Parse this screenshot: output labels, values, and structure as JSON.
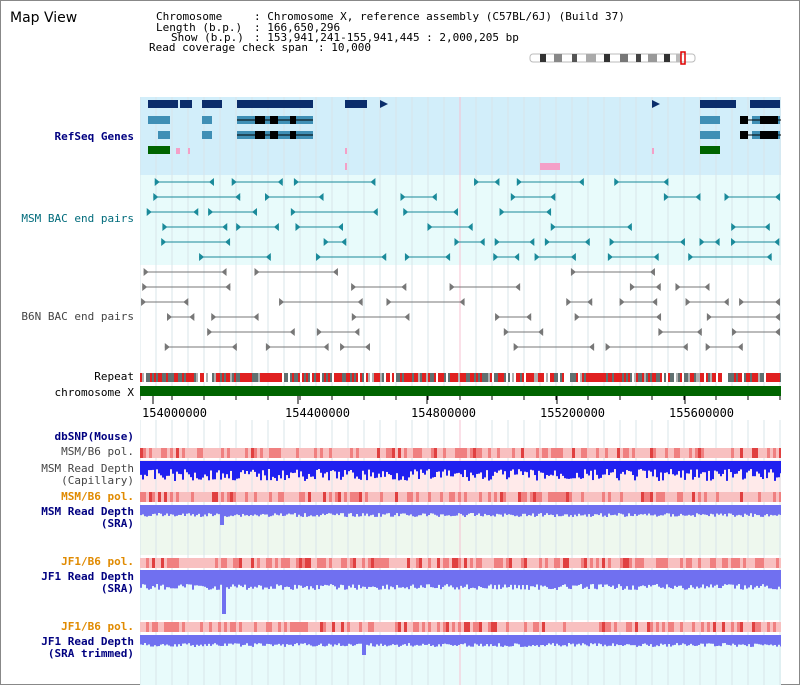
{
  "header": {
    "title": "Map View",
    "chromosome_label": "Chromosome",
    "chromosome_value": ": Chromosome X, reference assembly (C57BL/6J) (Build 37)",
    "length_label": "Length (b.p.)",
    "length_value": ": 166,650,296",
    "show_label": "Show (b.p.)",
    "show_value": ": 153,941,241-155,941,445 : 2,000,205 bp",
    "coverage_label": "Read coverage check span",
    "coverage_value": ": 10,000"
  },
  "tracks": {
    "refseq": "RefSeq Genes",
    "msm_bac": "MSM BAC end pairs",
    "b6n_bac": "B6N BAC end pairs",
    "repeat": "Repeat",
    "chromosome": "chromosome X",
    "dbsnp": "dbSNP(Mouse)",
    "msm_b6_pol_1": "MSM/B6 pol.",
    "msm_depth_cap_1": "MSM Read Depth",
    "msm_depth_cap_2": "(Capillary)",
    "msm_b6_pol_2": "MSM/B6 pol.",
    "msm_depth_sra_1": "MSM Read Depth",
    "msm_depth_sra_2": "(SRA)",
    "jf1_b6_pol_1": "JF1/B6 pol.",
    "jf1_depth_sra_1": "JF1 Read Depth",
    "jf1_depth_sra_2": "(SRA)",
    "jf1_b6_pol_2": "JF1/B6 pol.",
    "jf1_depth_trim_1": "JF1 Read Depth",
    "jf1_depth_trim_2": "(SRA trimmed)"
  },
  "axis": {
    "ticks": [
      "154000000",
      "154400000",
      "154800000",
      "155200000",
      "155600000"
    ]
  },
  "colors": {
    "navy": "#000080",
    "gene_dark": "#0b2d6b",
    "gene_mid": "#3f8fb5",
    "gene_green": "#006400",
    "bac_teal": "#1a8a9a",
    "bac_gray": "#777777",
    "depth_blue": "#2020f0",
    "depth_light": "#7070f0",
    "pol_pink": "#f4a0a0",
    "chrom_green": "#006400"
  }
}
